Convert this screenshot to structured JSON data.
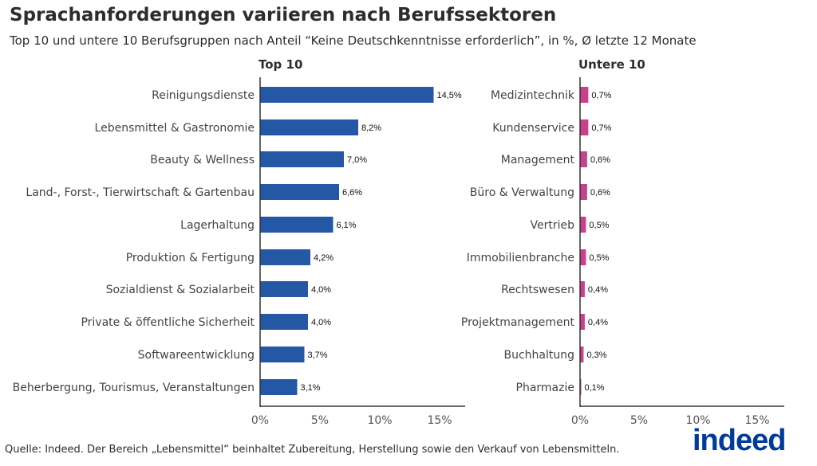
{
  "title": "Sprachanforderungen variieren nach Berufssektoren",
  "subtitle": "Top 10 und untere 10 Berufsgruppen nach Anteil “Keine Deutschkenntnisse erforderlich”, in %, Ø letzte 12 Monate",
  "source": "Quelle: Indeed. Der Bereich „Lebensmittel“ beinhaltet Zubereitung, Herstellung sowie den Verkauf von Lebensmitteln.",
  "logo": "indeed",
  "chart_data": [
    {
      "type": "bar",
      "orientation": "horizontal",
      "title": "Top 10",
      "color": "#2557a7",
      "categories": [
        "Reinigungsdienste",
        "Lebensmittel & Gastronomie",
        "Beauty & Wellness",
        "Land-, Forst-, Tierwirtschaft & Gartenbau",
        "Lagerhaltung",
        "Produktion & Fertigung",
        "Sozialdienst & Sozialarbeit",
        "Private & öffentliche Sicherheit",
        "Softwareentwicklung",
        "Beherbergung, Tourismus, Veranstaltungen"
      ],
      "values": [
        14.5,
        8.2,
        7.0,
        6.6,
        6.1,
        4.2,
        4.0,
        4.0,
        3.7,
        3.1
      ],
      "labels": [
        "14,5%",
        "8,2%",
        "7,0%",
        "6,6%",
        "6,1%",
        "4,2%",
        "4,0%",
        "4,0%",
        "3,7%",
        "3,1%"
      ],
      "xlim": [
        0,
        15
      ],
      "xticks": [
        "0%",
        "5%",
        "10%",
        "15%"
      ],
      "grid": false
    },
    {
      "type": "bar",
      "orientation": "horizontal",
      "title": "Untere 10",
      "color": "#c9408e",
      "categories": [
        "Medizintechnik",
        "Kundenservice",
        "Management",
        "Büro & Verwaltung",
        "Vertrieb",
        "Immobilienbranche",
        "Rechtswesen",
        "Projektmanagement",
        "Buchhaltung",
        "Pharmazie"
      ],
      "values": [
        0.7,
        0.7,
        0.6,
        0.6,
        0.5,
        0.5,
        0.4,
        0.4,
        0.3,
        0.1
      ],
      "labels": [
        "0,7%",
        "0,7%",
        "0,6%",
        "0,6%",
        "0,5%",
        "0,5%",
        "0,4%",
        "0,4%",
        "0,3%",
        "0,1%"
      ],
      "xlim": [
        0,
        15
      ],
      "xticks": [
        "0%",
        "5%",
        "10%",
        "15%"
      ],
      "grid": false
    }
  ]
}
